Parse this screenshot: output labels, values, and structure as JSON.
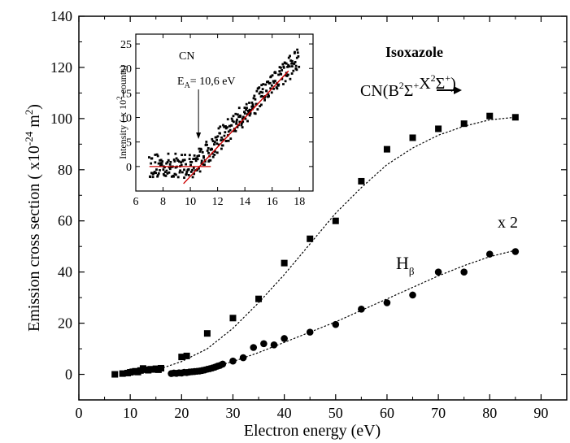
{
  "chart_data": [
    {
      "type": "scatter",
      "xlabel": "Electron energy (eV)",
      "ylabel": {
        "pre": "Emission cross section ( x10",
        "sup1": "-24",
        "mid": " m",
        "sup2": "2",
        "post": ")"
      },
      "xlim": [
        0,
        95
      ],
      "ylim": [
        -10,
        140
      ],
      "xticks": [
        0,
        10,
        20,
        30,
        40,
        50,
        60,
        70,
        80,
        90
      ],
      "yticks": [
        0,
        20,
        40,
        60,
        80,
        100,
        120,
        140
      ],
      "xtick_labels": [
        "0",
        "10",
        "20",
        "30",
        "40",
        "50",
        "60",
        "70",
        "80",
        "90"
      ],
      "ytick_labels": [
        "0",
        "20",
        "40",
        "60",
        "80",
        "100",
        "120",
        "140"
      ],
      "grid": false,
      "annotations": {
        "molecule": "Isoxazole",
        "cn_label": "CN(B",
        "cn_sup1": "2",
        "cn_sig1": "Σ",
        "cn_sup2": "+",
        "cn_x": "X",
        "cn_sup3": "2",
        "cn_sig2": "Σ",
        "cn_sup4": "+",
        "cn_close": ")",
        "hb_label": "H",
        "hb_sub": "β",
        "scale_label": "x 2"
      },
      "series": [
        {
          "marker": "square",
          "color": "#000000",
          "x": [
            7,
            8.5,
            9.5,
            10,
            10.5,
            11,
            11.5,
            12,
            12.5,
            13,
            13.5,
            14,
            14.5,
            15,
            15.5,
            16,
            20,
            21,
            25,
            30,
            35,
            40,
            45,
            50,
            55,
            60,
            65,
            70,
            75,
            80,
            85
          ],
          "y": [
            0,
            0.3,
            0.5,
            0.8,
            1,
            1.2,
            0.9,
            1.5,
            2.3,
            1.8,
            1.6,
            2,
            1.9,
            2.2,
            1.8,
            2.4,
            6.8,
            7.2,
            16,
            22,
            29.5,
            43.5,
            53,
            60,
            75.5,
            88,
            92.5,
            96,
            98,
            101,
            100.5
          ],
          "fit": {
            "style": "dotted",
            "x": [
              8,
              12,
              16,
              20,
              25,
              30,
              35,
              40,
              45,
              50,
              55,
              60,
              65,
              70,
              75,
              80,
              85
            ],
            "y": [
              0.5,
              1.2,
              2.3,
              5,
              10,
              18,
              28,
              39,
              51,
              63,
              73,
              82,
              88.5,
              93.5,
              97,
              99.5,
              100.5
            ]
          }
        },
        {
          "marker": "circle",
          "color": "#000000",
          "x": [
            18,
            18.5,
            19,
            19.5,
            20,
            20.5,
            21,
            21.5,
            22,
            22.5,
            23,
            23.5,
            24,
            24.5,
            25,
            25.5,
            26,
            26.5,
            27,
            27.5,
            28,
            30,
            32,
            34,
            36,
            38,
            40,
            45,
            50,
            55,
            60,
            65,
            70,
            75,
            80,
            85
          ],
          "y": [
            0.3,
            0.5,
            0.4,
            0.6,
            0.5,
            0.8,
            0.7,
            0.9,
            1,
            1.1,
            1.2,
            1.3,
            1.5,
            1.7,
            2,
            2.2,
            2.5,
            2.8,
            3.2,
            3.5,
            4,
            5.2,
            6.5,
            10.5,
            12,
            11.5,
            14,
            16.5,
            19.5,
            25.5,
            28,
            31,
            40,
            40,
            47,
            48
          ],
          "fit": {
            "style": "dotted",
            "x": [
              18,
              20,
              25,
              30,
              35,
              40,
              45,
              50,
              55,
              60,
              65,
              70,
              75,
              80,
              85
            ],
            "y": [
              0.3,
              0.8,
              2.2,
              5,
              8.5,
              12.5,
              16.5,
              20.5,
              25,
              29.5,
              34,
              38.5,
              42.5,
              46,
              48.5
            ]
          }
        }
      ]
    },
    {
      "type": "scatter",
      "role": "inset",
      "ylabel": {
        "pre": "Intensity ( x 10",
        "sup": "2",
        "post": " counts)"
      },
      "xlim": [
        6,
        19
      ],
      "ylim": [
        -5,
        27
      ],
      "xticks": [
        6,
        8,
        10,
        12,
        14,
        16,
        18
      ],
      "yticks": [
        0,
        5,
        10,
        15,
        20,
        25
      ],
      "xtick_labels": [
        "6",
        "8",
        "10",
        "12",
        "14",
        "16",
        "18"
      ],
      "ytick_labels": [
        "0",
        "5",
        "10",
        "15",
        "20",
        "25"
      ],
      "annotations": {
        "species": "CN",
        "threshold_pre": "E",
        "threshold_sub": "A",
        "threshold_post": "= 10,6 eV",
        "arrow_x": 10.6
      },
      "points_color": "#000000",
      "fit_color": "#cc0000",
      "baseline_fit": {
        "x": [
          7,
          11.5
        ],
        "y": [
          0,
          0
        ]
      },
      "linear_fit": {
        "x": [
          9.5,
          17.2
        ],
        "y": [
          -3.5,
          19.5
        ]
      }
    }
  ]
}
